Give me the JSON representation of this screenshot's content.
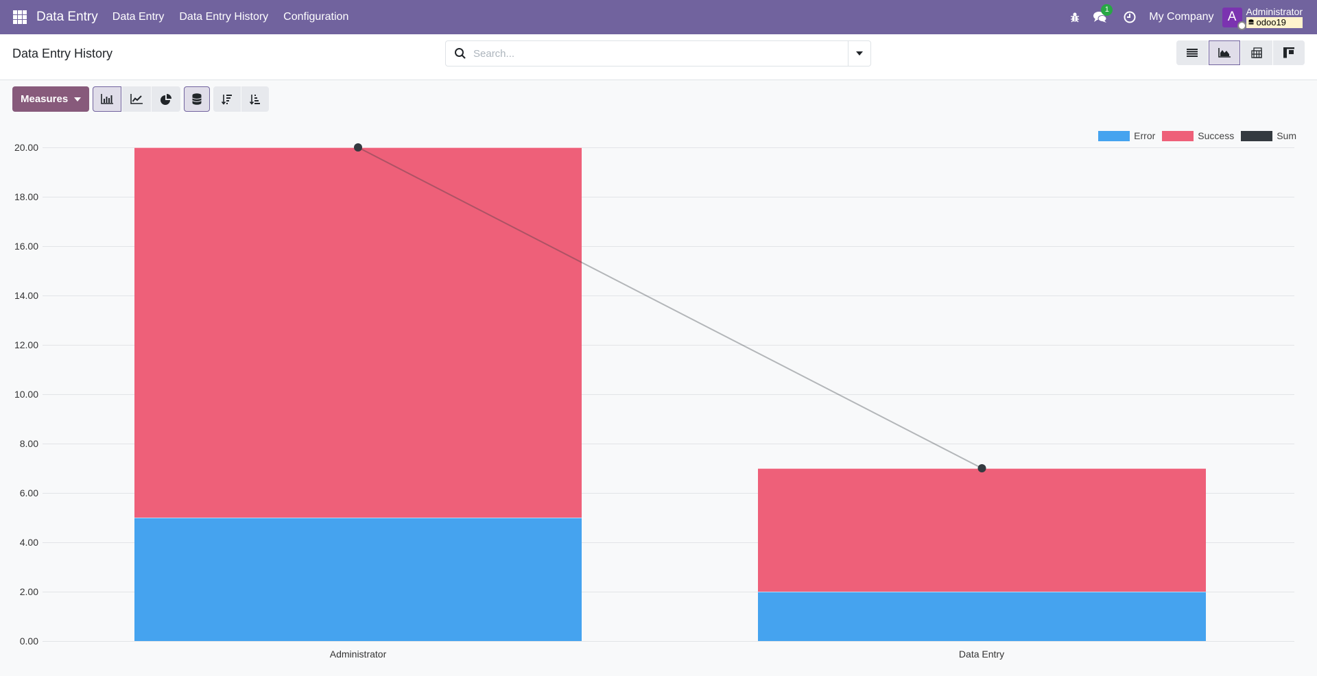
{
  "navbar": {
    "brand": "Data Entry",
    "menu": [
      "Data Entry",
      "Data Entry History",
      "Configuration"
    ],
    "messages_badge": "1",
    "company": "My Company",
    "avatar_letter": "A",
    "user": "Administrator",
    "database": "odoo19",
    "color": "#71639e"
  },
  "control_panel": {
    "breadcrumb": "Data Entry History",
    "search": {
      "placeholder": "Search...",
      "value": ""
    },
    "view_switcher": [
      {
        "name": "list-view",
        "active": false
      },
      {
        "name": "graph-view",
        "active": true
      },
      {
        "name": "pivot-view",
        "active": false
      },
      {
        "name": "kanban-view",
        "active": false
      }
    ]
  },
  "toolbar": {
    "measures_label": "Measures",
    "chart_types": [
      {
        "name": "bar-chart",
        "active": true
      },
      {
        "name": "line-chart",
        "active": false
      },
      {
        "name": "pie-chart",
        "active": false
      }
    ],
    "stacked_active": true,
    "sort": [
      "descending",
      "ascending"
    ]
  },
  "chart_data": {
    "type": "bar",
    "stacked": true,
    "categories": [
      "Administrator",
      "Data Entry"
    ],
    "series": [
      {
        "name": "Error",
        "type": "bar",
        "color": "#45a3ef",
        "values": [
          5,
          2
        ]
      },
      {
        "name": "Success",
        "type": "bar",
        "color": "#ee6079",
        "values": [
          15,
          5
        ]
      },
      {
        "name": "Sum",
        "type": "line",
        "color": "#343a40",
        "values": [
          20,
          7
        ]
      }
    ],
    "yticks": [
      "0.00",
      "2.00",
      "4.00",
      "6.00",
      "8.00",
      "10.00",
      "12.00",
      "14.00",
      "16.00",
      "18.00",
      "20.00"
    ],
    "ylim": [
      0,
      20
    ],
    "grid": true,
    "legend_position": "top-right",
    "title": "",
    "xlabel": "",
    "ylabel": ""
  }
}
